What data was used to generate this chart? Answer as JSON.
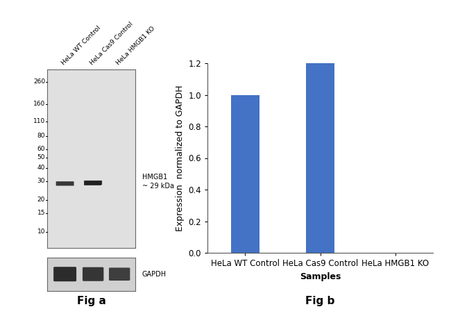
{
  "fig_a": {
    "mw_labels": [
      "260",
      "160",
      "110",
      "80",
      "60",
      "50",
      "40",
      "30",
      "20",
      "15",
      "10"
    ],
    "mw_values": [
      260,
      160,
      110,
      80,
      60,
      50,
      40,
      30,
      20,
      15,
      10
    ],
    "lane_labels": [
      "HeLa WT Control",
      "HeLa Cas9 Control",
      "HeLa HMGB1 KO"
    ],
    "hmgb1_annotation_line1": "HMGB1",
    "hmgb1_annotation_line2": "~ 29 kDa",
    "band1_mw": 29,
    "gapdh_label": "GAPDH",
    "fig_label": "Fig a",
    "gel_bg_color": "#e0e0e0",
    "gapdh_bg_color": "#d0d0d0",
    "band_color": "#1a1a1a",
    "border_color": "#666666",
    "log_min": 0.845,
    "log_max": 2.531
  },
  "fig_b": {
    "categories": [
      "HeLa WT Control",
      "HeLa Cas9 Control",
      "HeLa HMGB1 KO"
    ],
    "values": [
      1.0,
      1.2,
      0.0
    ],
    "bar_color": "#4472c4",
    "ylabel": "Expression  normalized to GAPDH",
    "xlabel": "Samples",
    "ylim": [
      0,
      1.2
    ],
    "yticks": [
      0,
      0.2,
      0.4,
      0.6,
      0.8,
      1.0,
      1.2
    ],
    "fig_label": "Fig b",
    "axis_fontsize": 9,
    "tick_fontsize": 8.5,
    "fig_label_fontsize": 12
  },
  "background_color": "#ffffff"
}
